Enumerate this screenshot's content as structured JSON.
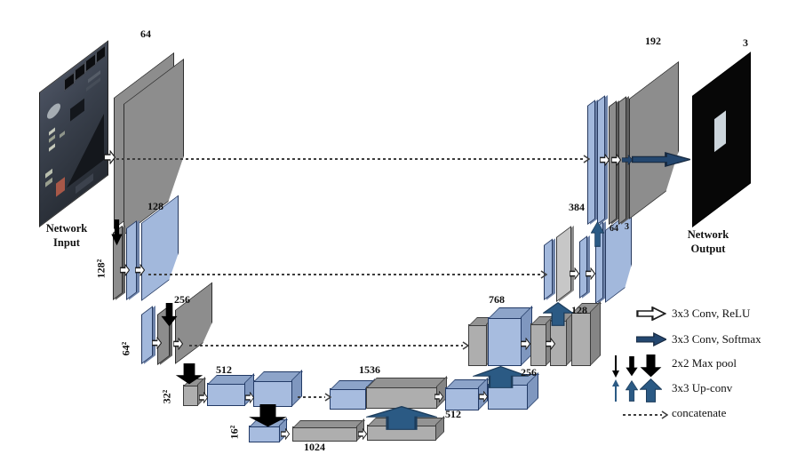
{
  "diagram": {
    "input_caption": "Network\nInput",
    "output_caption": "Network\nOutput",
    "encoder": {
      "l1_channels": "64",
      "l2_channels": "128",
      "l3_channels": "256",
      "l4_channels": "512",
      "bottleneck_channels": "1024",
      "l2_resolution": "128²",
      "l3_resolution": "64²",
      "l4_resolution": "32²",
      "l5_resolution": "16²"
    },
    "decoder": {
      "l4_concat_channels": "1536",
      "l4_out_channels": "512",
      "l3_concat_channels": "768",
      "l3_out_channels": "256",
      "l3_up_channels": "128",
      "l2_concat_channels": "384",
      "l2_out_channels": "64",
      "l2_final_channels": "3",
      "l1_concat_channels": "192",
      "output_channels": "3"
    },
    "legend": {
      "items": [
        {
          "icon": "conv-relu-arrow",
          "label": "3x3 Conv, ReLU"
        },
        {
          "icon": "conv-softmax-arrow",
          "label": "3x3 Conv, Softmax"
        },
        {
          "icon": "max-pool-arrow",
          "label": "2x2 Max pool"
        },
        {
          "icon": "up-conv-arrow",
          "label": "3x3 Up-conv"
        },
        {
          "icon": "concatenate-arrow",
          "label": "concatenate"
        }
      ]
    },
    "colors": {
      "layer_gray": "#8d8d8d",
      "layer_blue": "#a2b8dc",
      "concat_gray": "#c7c7c7",
      "arrow_navy": "#24476f",
      "arrow_upconv": "#2b5a84",
      "arrow_black": "#000000",
      "output_bg": "#070707"
    }
  }
}
